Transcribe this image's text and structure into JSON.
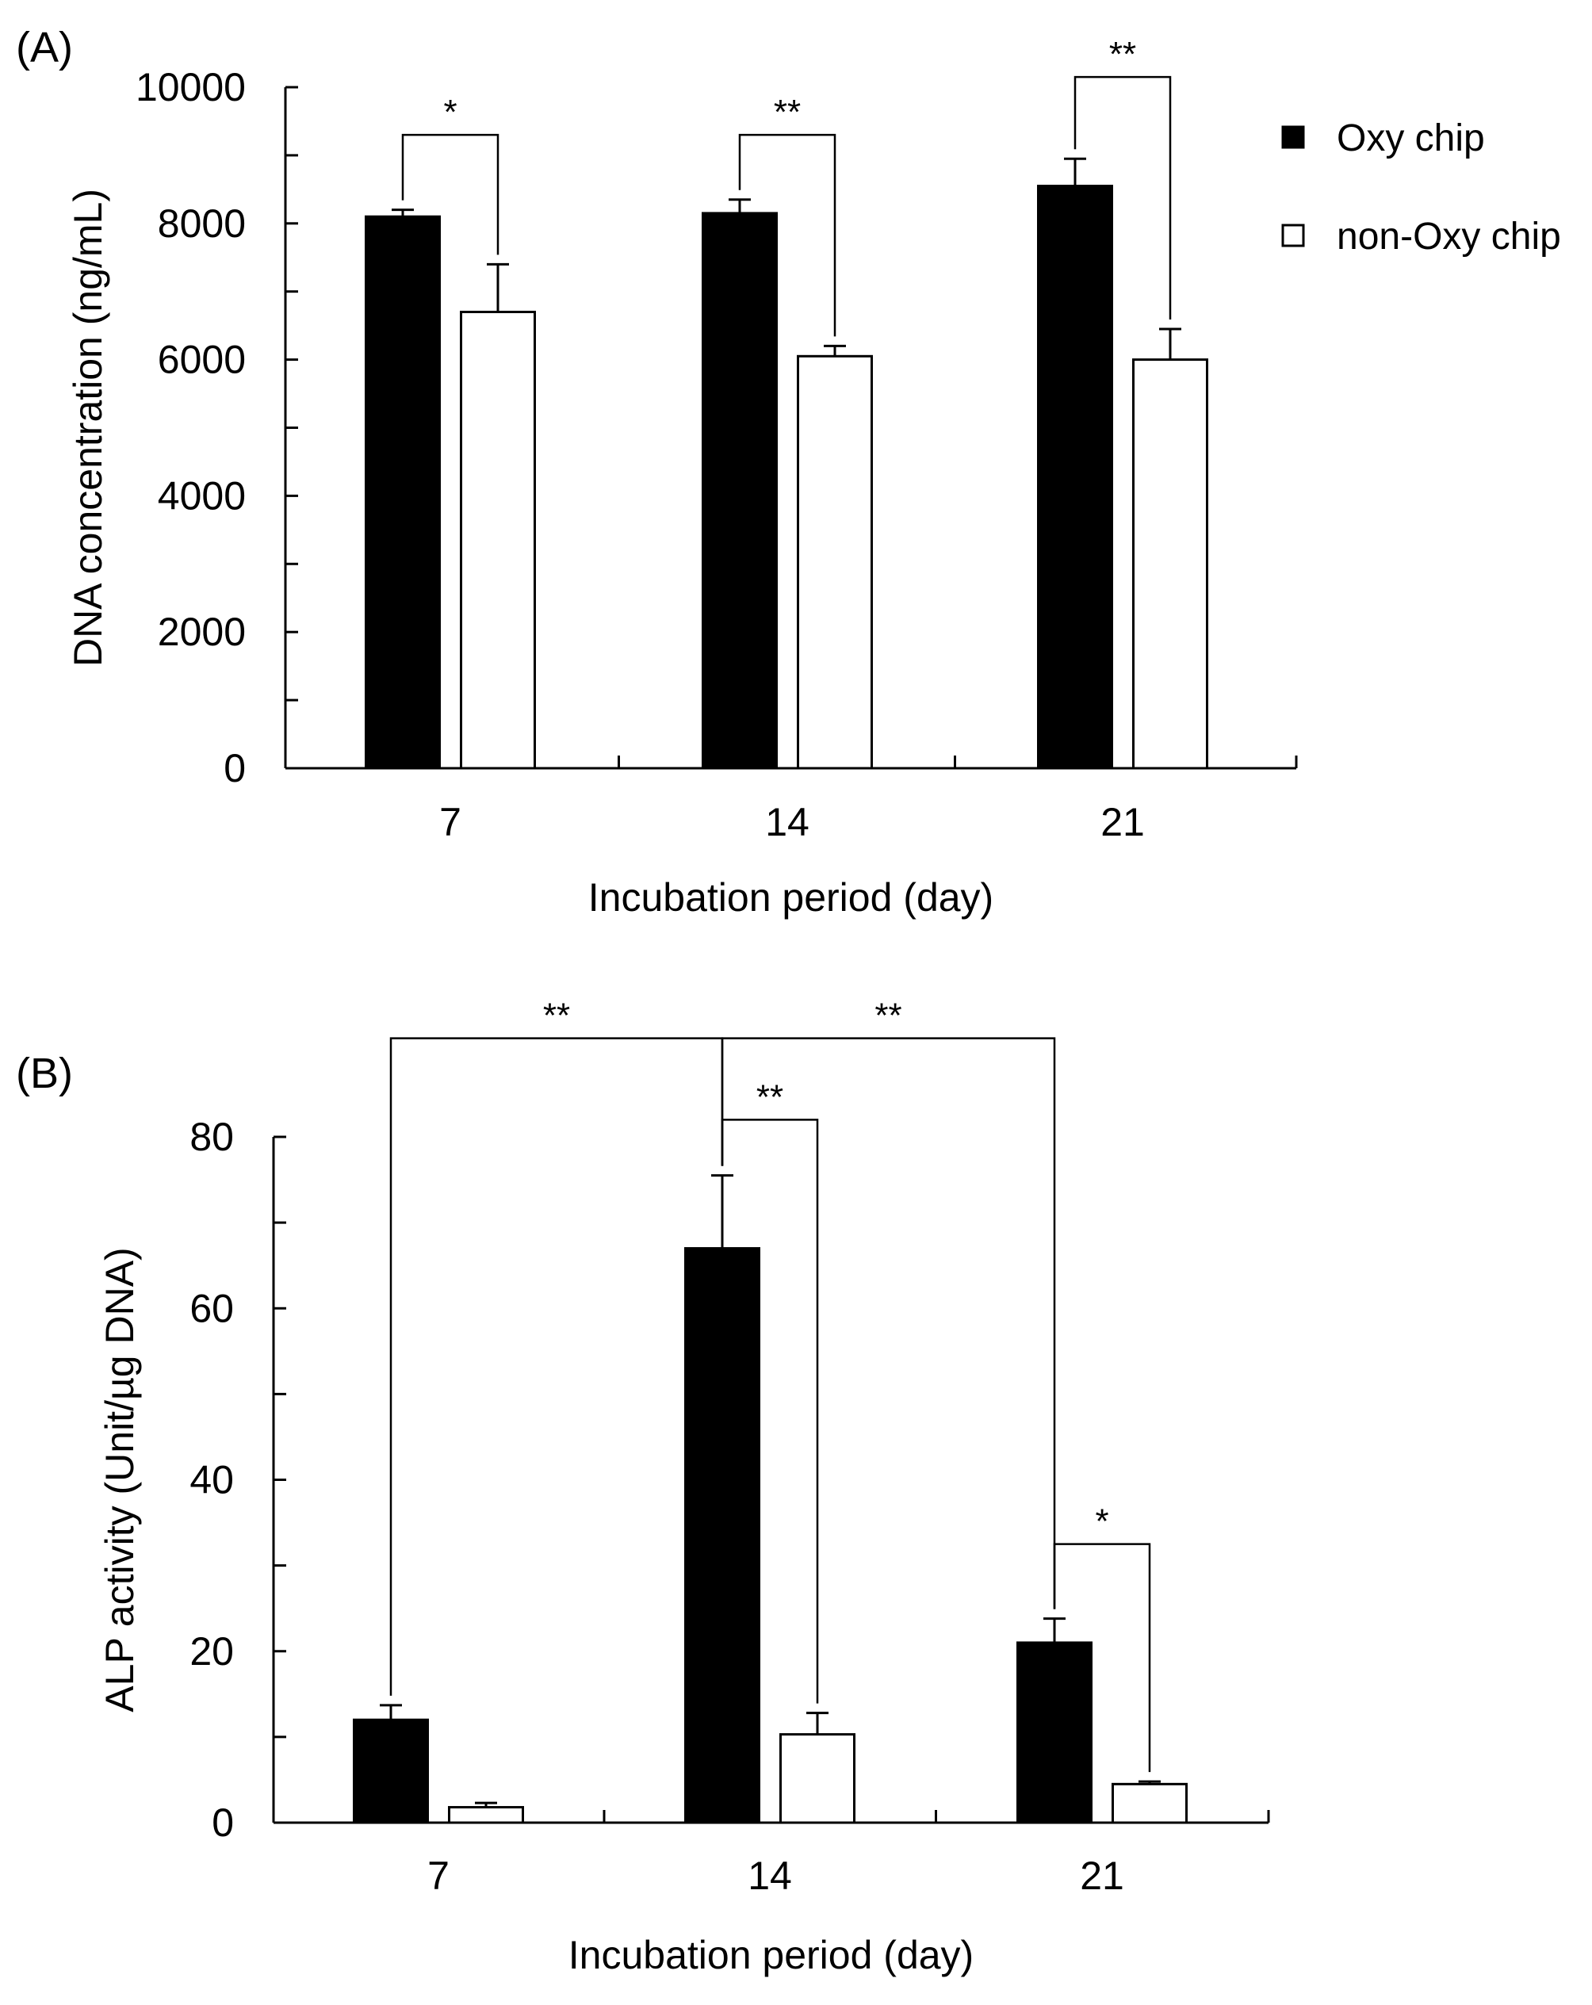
{
  "chart_data": [
    {
      "type": "bar",
      "panel_label": "(A)",
      "categories": [
        "7",
        "14",
        "21"
      ],
      "series": [
        {
          "name": "Oxy chip",
          "values": [
            8100,
            8150,
            8550
          ],
          "errors": [
            100,
            200,
            400
          ]
        },
        {
          "name": "non-Oxy chip",
          "values": [
            6700,
            6050,
            6000
          ],
          "errors": [
            700,
            150,
            450
          ]
        }
      ],
      "xlabel": "Incubation period (day)",
      "ylabel": "DNA concentration (ng/mL)",
      "ylim": [
        0,
        10000
      ],
      "yticks": [
        0,
        2000,
        4000,
        6000,
        8000,
        10000
      ],
      "legend": {
        "placement": "top-right",
        "entries": [
          {
            "label": "Oxy chip",
            "style": "filled"
          },
          {
            "label": "non-Oxy chip",
            "style": "open"
          }
        ]
      },
      "significance": [
        {
          "label": "*",
          "from": "7:Oxy chip",
          "to": "7:non-Oxy chip",
          "bracket_top": 9300
        },
        {
          "label": "**",
          "from": "14:Oxy chip",
          "to": "14:non-Oxy chip",
          "bracket_top": 9300
        },
        {
          "label": "**",
          "from": "21:Oxy chip",
          "to": "21:non-Oxy chip",
          "bracket_top": 10150
        }
      ]
    },
    {
      "type": "bar",
      "panel_label": "(B)",
      "categories": [
        "7",
        "14",
        "21"
      ],
      "series": [
        {
          "name": "Oxy chip",
          "values": [
            12,
            67,
            21
          ],
          "errors": [
            1.7,
            8.5,
            2.8
          ]
        },
        {
          "name": "non-Oxy chip",
          "values": [
            1.8,
            10.3,
            4.5
          ],
          "errors": [
            0.5,
            2.5,
            0.3
          ]
        }
      ],
      "xlabel": "Incubation period (day)",
      "ylabel": "ALP activity (Unit/µg DNA)",
      "ylim": [
        0,
        80
      ],
      "yticks": [
        0,
        20,
        40,
        60,
        80
      ],
      "significance": [
        {
          "label": "**",
          "from": "7:Oxy chip",
          "to": "14:Oxy chip",
          "bracket_top": 91.5
        },
        {
          "label": "**",
          "from": "14:Oxy chip",
          "to": "21:Oxy chip",
          "bracket_top": 91.5
        },
        {
          "label": "**",
          "from": "14:Oxy chip",
          "to": "14:non-Oxy chip",
          "bracket_top": 82
        },
        {
          "label": "*",
          "from": "21:Oxy chip",
          "to": "21:non-Oxy chip",
          "bracket_top": 32.5
        }
      ]
    }
  ],
  "colors": {
    "filled": "#000000",
    "open": "#ffffff",
    "axis": "#000000"
  }
}
